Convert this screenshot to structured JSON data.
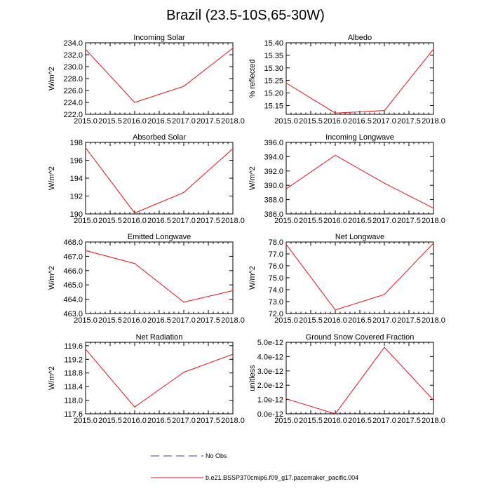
{
  "figure": {
    "title": "Brazil (23.5-10S,65-30W)"
  },
  "legend": {
    "entries": [
      {
        "label": "No Obs",
        "style": "dashed",
        "color": "#3c3c8c"
      },
      {
        "label": "b.e21.BSSP370cmip6.f09_g17.pacemaker_pacific.004",
        "style": "solid",
        "color": "#e8101a"
      }
    ]
  },
  "colors": {
    "series": "#e8101a",
    "axis": "#000000"
  },
  "chart_data": [
    {
      "type": "line",
      "title": "Incoming Solar",
      "ylabel": "W/m^2",
      "x": [
        2015.0,
        2016.0,
        2017.0,
        2018.0
      ],
      "values": [
        232.9,
        224.0,
        226.7,
        233.1
      ],
      "xlim": [
        2015.0,
        2018.0
      ],
      "ylim": [
        222.0,
        234.0
      ],
      "xticks": [
        "2015.0",
        "2015.5",
        "2016.0",
        "2016.5",
        "2017.0",
        "2017.5",
        "2018.0"
      ],
      "yticks": [
        "222.0",
        "224.0",
        "226.0",
        "228.0",
        "230.0",
        "232.0",
        "234.0"
      ],
      "ytick_values": [
        222,
        224,
        226,
        228,
        230,
        232,
        234
      ]
    },
    {
      "type": "line",
      "title": "Albedo",
      "ylabel": "% reflected",
      "x": [
        2015.0,
        2016.0,
        2017.0,
        2018.0
      ],
      "values": [
        15.24,
        15.12,
        15.13,
        15.375
      ],
      "xlim": [
        2015.0,
        2018.0
      ],
      "ylim": [
        15.115,
        15.4
      ],
      "xticks": [
        "2015.0",
        "2015.5",
        "2016.0",
        "2016.5",
        "2017.0",
        "2017.5",
        "2018.0"
      ],
      "yticks": [
        "15.15",
        "15.20",
        "15.25",
        "15.30",
        "15.35",
        "15.40"
      ],
      "ytick_values": [
        15.15,
        15.2,
        15.25,
        15.3,
        15.35,
        15.4
      ]
    },
    {
      "type": "line",
      "title": "Absorbed Solar",
      "ylabel": "W/m^2",
      "x": [
        2015.0,
        2016.0,
        2017.0,
        2018.0
      ],
      "values": [
        197.4,
        190.1,
        192.4,
        197.3
      ],
      "xlim": [
        2015.0,
        2018.0
      ],
      "ylim": [
        190.0,
        198.0
      ],
      "xticks": [
        "2015.0",
        "2015.5",
        "2016.0",
        "2016.5",
        "2017.0",
        "2017.5",
        "2018.0"
      ],
      "yticks": [
        "190",
        "192",
        "194",
        "196",
        "198"
      ],
      "ytick_values": [
        190,
        192,
        194,
        196,
        198
      ]
    },
    {
      "type": "line",
      "title": "Incoming Longwave",
      "ylabel": "W/m^2",
      "x": [
        2015.0,
        2016.0,
        2017.0,
        2018.0
      ],
      "values": [
        389.5,
        394.2,
        390.3,
        386.8
      ],
      "xlim": [
        2015.0,
        2018.0
      ],
      "ylim": [
        386.0,
        396.0
      ],
      "xticks": [
        "2015.0",
        "2015.5",
        "2016.0",
        "2016.5",
        "2017.0",
        "2017.5",
        "2018.0"
      ],
      "yticks": [
        "386.0",
        "388.0",
        "390.0",
        "392.0",
        "394.0",
        "396.0"
      ],
      "ytick_values": [
        386,
        388,
        390,
        392,
        394,
        396
      ]
    },
    {
      "type": "line",
      "title": "Emitted Longwave",
      "ylabel": "W/m^2",
      "x": [
        2015.0,
        2016.0,
        2017.0,
        2018.0
      ],
      "values": [
        467.4,
        466.5,
        463.8,
        464.6
      ],
      "xlim": [
        2015.0,
        2018.0
      ],
      "ylim": [
        463.0,
        468.0
      ],
      "xticks": [
        "2015.0",
        "2015.5",
        "2016.0",
        "2016.5",
        "2017.0",
        "2017.5",
        "2018.0"
      ],
      "yticks": [
        "463.0",
        "464.0",
        "465.0",
        "466.0",
        "467.0",
        "468.0"
      ],
      "ytick_values": [
        463,
        464,
        465,
        466,
        467,
        468
      ]
    },
    {
      "type": "line",
      "title": "Net Longwave",
      "ylabel": "W/m^2",
      "x": [
        2015.0,
        2016.0,
        2017.0,
        2018.0
      ],
      "values": [
        77.8,
        72.3,
        73.6,
        77.9
      ],
      "xlim": [
        2015.0,
        2018.0
      ],
      "ylim": [
        72.0,
        78.0
      ],
      "xticks": [
        "2015.0",
        "2015.5",
        "2016.0",
        "2016.5",
        "2017.0",
        "2017.5",
        "2018.0"
      ],
      "yticks": [
        "72.0",
        "73.0",
        "74.0",
        "75.0",
        "76.0",
        "77.0",
        "78.0"
      ],
      "ytick_values": [
        72,
        73,
        74,
        75,
        76,
        77,
        78
      ]
    },
    {
      "type": "line",
      "title": "Net Radiation",
      "ylabel": "W/m^2",
      "x": [
        2015.0,
        2016.0,
        2017.0,
        2018.0
      ],
      "values": [
        119.5,
        117.8,
        118.82,
        119.35
      ],
      "xlim": [
        2015.0,
        2018.0
      ],
      "ylim": [
        117.6,
        119.7
      ],
      "xticks": [
        "2015.0",
        "2015.5",
        "2016.0",
        "2016.5",
        "2017.0",
        "2017.5",
        "2018.0"
      ],
      "yticks": [
        "117.6",
        "118.0",
        "118.4",
        "118.8",
        "119.2",
        "119.6"
      ],
      "ytick_values": [
        117.6,
        118.0,
        118.4,
        118.8,
        119.2,
        119.6
      ]
    },
    {
      "type": "line",
      "title": "Ground Snow Covered Fraction",
      "ylabel": "unitless",
      "x": [
        2015.0,
        2016.0,
        2017.0,
        2018.0
      ],
      "values": [
        1.05e-12,
        0.0,
        4.65e-12,
        9.5e-13
      ],
      "xlim": [
        2015.0,
        2018.0
      ],
      "ylim": [
        0.0,
        5e-12
      ],
      "xticks": [
        "2015.0",
        "2015.5",
        "2016.0",
        "2016.5",
        "2017.0",
        "2017.5",
        "2018.0"
      ],
      "yticks": [
        "0.0e-12",
        "1.0e-12",
        "2.0e-12",
        "3.0e-12",
        "4.0e-12",
        "5.0e-12"
      ],
      "ytick_values": [
        0.0,
        1e-12,
        2e-12,
        3e-12,
        4e-12,
        5e-12
      ]
    }
  ]
}
